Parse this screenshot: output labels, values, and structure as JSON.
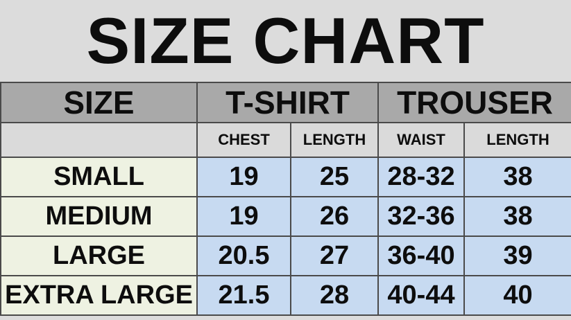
{
  "title": "SIZE CHART",
  "headers": {
    "size": "SIZE",
    "tshirt": "T-SHIRT",
    "trouser": "TROUSER"
  },
  "subheaders": [
    "CHEST",
    "LENGTH",
    "WAIST",
    "LENGTH"
  ],
  "rows": [
    {
      "size": "SMALL",
      "chest": "19",
      "tlength": "25",
      "waist": "28-32",
      "plength": "38"
    },
    {
      "size": "MEDIUM",
      "chest": "19",
      "tlength": "26",
      "waist": "32-36",
      "plength": "38"
    },
    {
      "size": "LARGE",
      "chest": "20.5",
      "tlength": "27",
      "waist": "36-40",
      "plength": "39"
    },
    {
      "size": "EXTRA LARGE",
      "chest": "21.5",
      "tlength": "28",
      "waist": "40-44",
      "plength": "40"
    }
  ],
  "colors": {
    "header": "#a9a9a9",
    "subheader": "#dadada",
    "size_cell": "#eef2e2",
    "value_cell": "#c7daf1"
  }
}
